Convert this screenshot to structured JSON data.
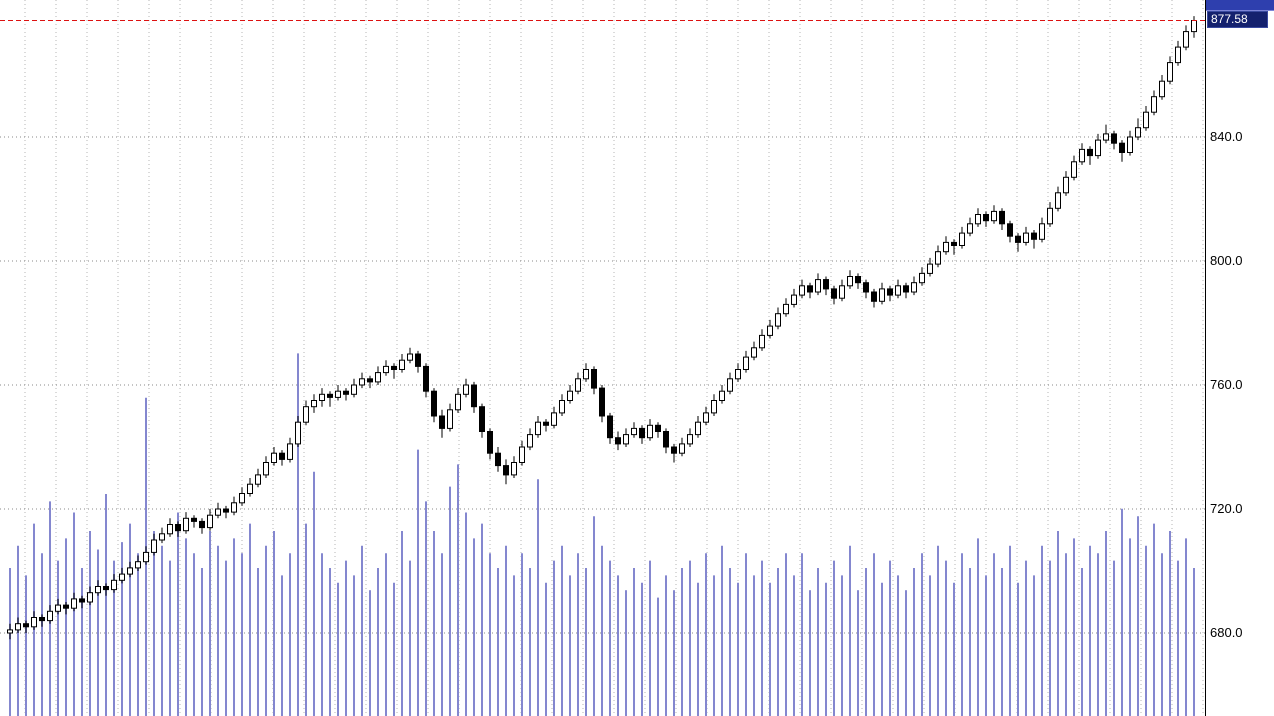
{
  "chart_data": {
    "type": "candlestick",
    "title": "",
    "xlabel": "",
    "ylabel": "",
    "grid": "dotted",
    "legend": "none",
    "x_axis_labels": [],
    "y_axis": {
      "side": "right",
      "ticks": [
        840.0,
        800.0,
        760.0,
        720.0,
        680.0
      ],
      "tick_labels": [
        "840.0",
        "800.0",
        "760.0",
        "720.0",
        "680.0"
      ],
      "visible_range": [
        653,
        885
      ]
    },
    "last_price": 877.58,
    "last_price_label": "877.58",
    "candles": [
      [
        680,
        683,
        678,
        681
      ],
      [
        681,
        685,
        680,
        683
      ],
      [
        683,
        684,
        680,
        682
      ],
      [
        682,
        687,
        681,
        685
      ],
      [
        685,
        686,
        682,
        684
      ],
      [
        684,
        689,
        683,
        687
      ],
      [
        687,
        691,
        686,
        689
      ],
      [
        689,
        690,
        686,
        688
      ],
      [
        688,
        693,
        687,
        691
      ],
      [
        691,
        692,
        688,
        690
      ],
      [
        690,
        695,
        689,
        693
      ],
      [
        693,
        697,
        692,
        695
      ],
      [
        695,
        696,
        692,
        694
      ],
      [
        694,
        699,
        693,
        697
      ],
      [
        697,
        701,
        696,
        699
      ],
      [
        699,
        703,
        698,
        701
      ],
      [
        701,
        705,
        700,
        703
      ],
      [
        703,
        708,
        702,
        706
      ],
      [
        706,
        712,
        705,
        710
      ],
      [
        710,
        714,
        709,
        712
      ],
      [
        712,
        717,
        711,
        715
      ],
      [
        715,
        716,
        711,
        713
      ],
      [
        713,
        719,
        712,
        717
      ],
      [
        717,
        718,
        714,
        716
      ],
      [
        716,
        717,
        712,
        714
      ],
      [
        714,
        720,
        713,
        718
      ],
      [
        718,
        722,
        717,
        720
      ],
      [
        720,
        721,
        717,
        719
      ],
      [
        719,
        724,
        718,
        722
      ],
      [
        722,
        727,
        721,
        725
      ],
      [
        725,
        730,
        724,
        728
      ],
      [
        728,
        733,
        727,
        731
      ],
      [
        731,
        737,
        730,
        735
      ],
      [
        735,
        740,
        734,
        738
      ],
      [
        738,
        739,
        734,
        736
      ],
      [
        736,
        743,
        735,
        741
      ],
      [
        741,
        750,
        740,
        748
      ],
      [
        748,
        755,
        747,
        753
      ],
      [
        753,
        757,
        751,
        755
      ],
      [
        755,
        759,
        753,
        757
      ],
      [
        757,
        758,
        753,
        756
      ],
      [
        756,
        760,
        755,
        758
      ],
      [
        758,
        759,
        755,
        757
      ],
      [
        757,
        762,
        756,
        760
      ],
      [
        760,
        764,
        759,
        762
      ],
      [
        762,
        763,
        759,
        761
      ],
      [
        761,
        766,
        760,
        764
      ],
      [
        764,
        768,
        763,
        766
      ],
      [
        766,
        767,
        762,
        765
      ],
      [
        765,
        770,
        764,
        768
      ],
      [
        768,
        772,
        767,
        770
      ],
      [
        770,
        771,
        764,
        766
      ],
      [
        766,
        767,
        756,
        758
      ],
      [
        758,
        759,
        748,
        750
      ],
      [
        750,
        752,
        743,
        746
      ],
      [
        746,
        754,
        745,
        752
      ],
      [
        752,
        759,
        751,
        757
      ],
      [
        757,
        762,
        756,
        760
      ],
      [
        760,
        761,
        751,
        753
      ],
      [
        753,
        754,
        743,
        745
      ],
      [
        745,
        746,
        736,
        738
      ],
      [
        738,
        740,
        732,
        734
      ],
      [
        734,
        736,
        728,
        731
      ],
      [
        731,
        737,
        730,
        735
      ],
      [
        735,
        742,
        734,
        740
      ],
      [
        740,
        746,
        739,
        744
      ],
      [
        744,
        750,
        743,
        748
      ],
      [
        748,
        749,
        745,
        747
      ],
      [
        747,
        753,
        746,
        751
      ],
      [
        751,
        757,
        750,
        755
      ],
      [
        755,
        760,
        754,
        758
      ],
      [
        758,
        764,
        757,
        762
      ],
      [
        762,
        767,
        761,
        765
      ],
      [
        765,
        766,
        757,
        759
      ],
      [
        759,
        760,
        748,
        750
      ],
      [
        750,
        751,
        741,
        743
      ],
      [
        743,
        745,
        739,
        741
      ],
      [
        741,
        746,
        740,
        744
      ],
      [
        744,
        748,
        743,
        746
      ],
      [
        746,
        747,
        741,
        743
      ],
      [
        743,
        749,
        742,
        747
      ],
      [
        747,
        748,
        743,
        745
      ],
      [
        745,
        746,
        738,
        740
      ],
      [
        740,
        741,
        735,
        738
      ],
      [
        738,
        743,
        737,
        741
      ],
      [
        741,
        746,
        740,
        744
      ],
      [
        744,
        750,
        743,
        748
      ],
      [
        748,
        753,
        747,
        751
      ],
      [
        751,
        757,
        750,
        755
      ],
      [
        755,
        760,
        754,
        758
      ],
      [
        758,
        764,
        757,
        762
      ],
      [
        762,
        767,
        761,
        765
      ],
      [
        765,
        771,
        764,
        769
      ],
      [
        769,
        774,
        768,
        772
      ],
      [
        772,
        778,
        771,
        776
      ],
      [
        776,
        781,
        775,
        779
      ],
      [
        779,
        785,
        778,
        783
      ],
      [
        783,
        788,
        782,
        786
      ],
      [
        786,
        791,
        785,
        789
      ],
      [
        789,
        794,
        788,
        792
      ],
      [
        792,
        793,
        788,
        790
      ],
      [
        790,
        796,
        789,
        794
      ],
      [
        794,
        795,
        789,
        791
      ],
      [
        791,
        792,
        786,
        788
      ],
      [
        788,
        794,
        787,
        792
      ],
      [
        792,
        797,
        791,
        795
      ],
      [
        795,
        796,
        791,
        793
      ],
      [
        793,
        794,
        788,
        790
      ],
      [
        790,
        791,
        785,
        787
      ],
      [
        787,
        793,
        786,
        791
      ],
      [
        791,
        792,
        787,
        789
      ],
      [
        789,
        794,
        788,
        792
      ],
      [
        792,
        793,
        788,
        790
      ],
      [
        790,
        795,
        789,
        793
      ],
      [
        793,
        798,
        792,
        796
      ],
      [
        796,
        801,
        795,
        799
      ],
      [
        799,
        805,
        798,
        803
      ],
      [
        803,
        808,
        802,
        806
      ],
      [
        806,
        807,
        802,
        805
      ],
      [
        805,
        811,
        804,
        809
      ],
      [
        809,
        814,
        808,
        812
      ],
      [
        812,
        817,
        811,
        815
      ],
      [
        815,
        816,
        811,
        813
      ],
      [
        813,
        818,
        812,
        816
      ],
      [
        816,
        817,
        810,
        812
      ],
      [
        812,
        813,
        806,
        808
      ],
      [
        808,
        809,
        803,
        806
      ],
      [
        806,
        811,
        805,
        809
      ],
      [
        809,
        810,
        804,
        807
      ],
      [
        807,
        814,
        806,
        812
      ],
      [
        812,
        819,
        811,
        817
      ],
      [
        817,
        824,
        816,
        822
      ],
      [
        822,
        829,
        821,
        827
      ],
      [
        827,
        834,
        826,
        832
      ],
      [
        832,
        838,
        831,
        836
      ],
      [
        836,
        837,
        831,
        834
      ],
      [
        834,
        841,
        833,
        839
      ],
      [
        839,
        844,
        838,
        841
      ],
      [
        841,
        842,
        836,
        838
      ],
      [
        838,
        839,
        832,
        835
      ],
      [
        835,
        842,
        834,
        840
      ],
      [
        840,
        846,
        839,
        843
      ],
      [
        843,
        850,
        842,
        848
      ],
      [
        848,
        855,
        847,
        853
      ],
      [
        853,
        860,
        852,
        858
      ],
      [
        858,
        866,
        857,
        864
      ],
      [
        864,
        871,
        863,
        869
      ],
      [
        869,
        876,
        868,
        874
      ],
      [
        874,
        879,
        872,
        877.58
      ]
    ],
    "volumes": [
      40,
      46,
      38,
      52,
      44,
      58,
      42,
      48,
      55,
      40,
      50,
      45,
      60,
      42,
      47,
      52,
      44,
      86,
      50,
      46,
      42,
      55,
      48,
      44,
      40,
      50,
      46,
      42,
      48,
      44,
      52,
      40,
      46,
      50,
      38,
      44,
      98,
      52,
      66,
      44,
      40,
      36,
      42,
      38,
      46,
      34,
      40,
      44,
      36,
      50,
      42,
      72,
      58,
      50,
      44,
      62,
      68,
      55,
      48,
      52,
      44,
      40,
      46,
      38,
      44,
      40,
      64,
      36,
      42,
      46,
      38,
      44,
      40,
      54,
      46,
      42,
      38,
      34,
      40,
      36,
      42,
      32,
      38,
      34,
      40,
      42,
      36,
      44,
      38,
      46,
      40,
      36,
      44,
      38,
      42,
      36,
      40,
      44,
      38,
      44,
      34,
      40,
      36,
      42,
      38,
      46,
      34,
      40,
      44,
      36,
      42,
      38,
      34,
      40,
      44,
      38,
      46,
      42,
      36,
      44,
      40,
      48,
      38,
      44,
      40,
      46,
      36,
      42,
      38,
      46,
      42,
      50,
      44,
      48,
      40,
      46,
      44,
      50,
      42,
      56,
      48,
      54,
      46,
      52,
      44,
      50,
      42,
      48,
      40
    ],
    "colors": {
      "up_body": "#ffffff",
      "down_body": "#000000",
      "outline": "#000000",
      "volume": "#8487cf",
      "grid_h": "#8a8a8a",
      "grid_v": "#b5b5b5",
      "last_price_line": "#dd1111",
      "label_bg": "#14216e",
      "label_text": "#ffffff",
      "titlebar": "#2e3fae"
    }
  }
}
